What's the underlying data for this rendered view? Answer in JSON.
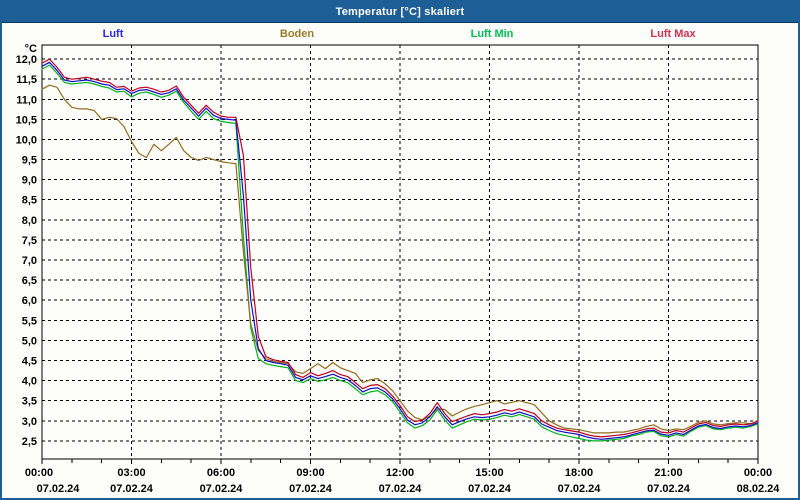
{
  "window": {
    "title": "Temperatur [°C] skaliert",
    "titlebar_color": "#1e5e97",
    "border_color": "#1e5e97"
  },
  "legend": [
    {
      "label": "Luft",
      "color": "#2a2ae6"
    },
    {
      "label": "Boden",
      "color": "#9a7a28"
    },
    {
      "label": "Luft Min",
      "color": "#00c055"
    },
    {
      "label": "Luft Max",
      "color": "#d23254"
    }
  ],
  "chart_data": {
    "type": "line",
    "title": "Temperatur [°C] skaliert",
    "y_unit": "°C",
    "ylabel": "Temperatur",
    "ylim": [
      2.05,
      12.35
    ],
    "grid": "dashed",
    "legend_position": "top",
    "y_ticks": [
      12.0,
      11.5,
      11.0,
      10.5,
      10.0,
      9.5,
      9.0,
      8.5,
      8.0,
      7.5,
      7.0,
      6.5,
      6.0,
      5.5,
      5.0,
      4.5,
      4.0,
      3.5,
      3.0,
      2.5
    ],
    "y_tick_labels": [
      "12,0",
      "11,5",
      "11,0",
      "10,5",
      "10,0",
      "9,5",
      "9,0",
      "8,5",
      "8,0",
      "7,5",
      "7,0",
      "6,5",
      "6,0",
      "5,5",
      "5,0",
      "4,5",
      "4,0",
      "3,5",
      "3,0",
      "2,5"
    ],
    "x_hours_span": 24,
    "minor_tick_hours": 1,
    "sample_interval_minutes": 15,
    "x_ticks": [
      {
        "time": "00:00",
        "date": "07.02.24"
      },
      {
        "time": "03:00",
        "date": "07.02.24"
      },
      {
        "time": "06:00",
        "date": "07.02.24"
      },
      {
        "time": "09:00",
        "date": "07.02.24"
      },
      {
        "time": "12:00",
        "date": "07.02.24"
      },
      {
        "time": "15:00",
        "date": "07.02.24"
      },
      {
        "time": "18:00",
        "date": "07.02.24"
      },
      {
        "time": "21:00",
        "date": "07.02.24"
      },
      {
        "time": "00:00",
        "date": "08.02.24"
      }
    ],
    "date_label_color": "#1f2a4a",
    "series": [
      {
        "name": "Luft",
        "color": "#1010cc",
        "values": [
          11.82,
          11.92,
          11.72,
          11.48,
          11.44,
          11.46,
          11.48,
          11.44,
          11.38,
          11.35,
          11.24,
          11.26,
          11.14,
          11.22,
          11.24,
          11.18,
          11.12,
          11.16,
          11.26,
          10.98,
          10.78,
          10.58,
          10.78,
          10.6,
          10.52,
          10.5,
          10.48,
          8.6,
          6.0,
          4.8,
          4.5,
          4.45,
          4.42,
          4.38,
          4.08,
          4.02,
          4.12,
          4.05,
          4.1,
          4.16,
          4.08,
          4.02,
          3.88,
          3.72,
          3.8,
          3.82,
          3.72,
          3.55,
          3.3,
          3.02,
          2.9,
          2.95,
          3.1,
          3.35,
          3.1,
          2.9,
          2.98,
          3.05,
          3.1,
          3.08,
          3.1,
          3.14,
          3.2,
          3.16,
          3.22,
          3.16,
          3.1,
          2.92,
          2.84,
          2.76,
          2.72,
          2.69,
          2.66,
          2.6,
          2.56,
          2.54,
          2.56,
          2.58,
          2.6,
          2.65,
          2.7,
          2.75,
          2.77,
          2.67,
          2.64,
          2.7,
          2.66,
          2.77,
          2.87,
          2.91,
          2.83,
          2.81,
          2.85,
          2.87,
          2.85,
          2.88,
          2.95
        ]
      },
      {
        "name": "Boden",
        "color": "#926c1c",
        "values": [
          11.25,
          11.35,
          11.3,
          11.0,
          10.8,
          10.76,
          10.76,
          10.72,
          10.5,
          10.55,
          10.52,
          10.32,
          9.95,
          9.65,
          9.55,
          9.88,
          9.72,
          9.88,
          10.05,
          9.72,
          9.55,
          9.48,
          9.55,
          9.5,
          9.45,
          9.42,
          9.4,
          7.2,
          5.4,
          4.75,
          4.55,
          4.48,
          4.45,
          4.42,
          4.22,
          4.18,
          4.3,
          4.42,
          4.3,
          4.45,
          4.32,
          4.25,
          4.18,
          3.95,
          4.02,
          4.05,
          3.92,
          3.75,
          3.5,
          3.25,
          3.08,
          3.02,
          3.12,
          3.3,
          3.28,
          3.12,
          3.22,
          3.3,
          3.36,
          3.4,
          3.45,
          3.5,
          3.42,
          3.46,
          3.5,
          3.45,
          3.4,
          3.2,
          3.0,
          2.9,
          2.82,
          2.8,
          2.78,
          2.74,
          2.7,
          2.7,
          2.7,
          2.72,
          2.72,
          2.76,
          2.8,
          2.86,
          2.9,
          2.8,
          2.76,
          2.8,
          2.78,
          2.86,
          2.96,
          3.0,
          2.92,
          2.9,
          2.93,
          2.95,
          2.95,
          2.93,
          2.95
        ]
      },
      {
        "name": "Luft Min",
        "color": "#00b41e",
        "values": [
          11.75,
          11.85,
          11.65,
          11.42,
          11.38,
          11.4,
          11.42,
          11.38,
          11.32,
          11.28,
          11.18,
          11.2,
          11.06,
          11.15,
          11.18,
          11.12,
          11.05,
          11.1,
          11.2,
          10.92,
          10.7,
          10.5,
          10.7,
          10.52,
          10.45,
          10.42,
          10.4,
          7.6,
          5.3,
          4.55,
          4.42,
          4.38,
          4.35,
          4.32,
          4.0,
          3.95,
          4.05,
          3.98,
          4.02,
          4.08,
          4.0,
          3.95,
          3.8,
          3.65,
          3.72,
          3.75,
          3.65,
          3.48,
          3.22,
          2.95,
          2.82,
          2.88,
          3.02,
          3.28,
          3.02,
          2.82,
          2.9,
          2.98,
          3.04,
          3.02,
          3.04,
          3.08,
          3.14,
          3.1,
          3.16,
          3.1,
          3.04,
          2.85,
          2.76,
          2.68,
          2.64,
          2.6,
          2.56,
          2.52,
          2.5,
          2.5,
          2.52,
          2.54,
          2.56,
          2.62,
          2.66,
          2.72,
          2.74,
          2.63,
          2.6,
          2.66,
          2.62,
          2.74,
          2.84,
          2.88,
          2.8,
          2.78,
          2.82,
          2.84,
          2.82,
          2.86,
          2.92
        ]
      },
      {
        "name": "Luft Max",
        "color": "#c00022",
        "values": [
          11.9,
          12.0,
          11.8,
          11.55,
          11.5,
          11.52,
          11.55,
          11.5,
          11.45,
          11.42,
          11.3,
          11.32,
          11.2,
          11.28,
          11.3,
          11.25,
          11.18,
          11.22,
          11.33,
          11.05,
          10.85,
          10.65,
          10.85,
          10.68,
          10.58,
          10.55,
          10.55,
          9.6,
          6.8,
          5.1,
          4.6,
          4.52,
          4.48,
          4.45,
          4.15,
          4.08,
          4.2,
          4.12,
          4.18,
          4.25,
          4.15,
          4.1,
          3.95,
          3.8,
          3.88,
          3.9,
          3.8,
          3.62,
          3.38,
          3.1,
          2.98,
          3.02,
          3.18,
          3.45,
          3.18,
          2.98,
          3.05,
          3.12,
          3.18,
          3.15,
          3.18,
          3.22,
          3.28,
          3.24,
          3.3,
          3.24,
          3.18,
          3.0,
          2.9,
          2.82,
          2.78,
          2.75,
          2.72,
          2.66,
          2.62,
          2.6,
          2.62,
          2.64,
          2.66,
          2.7,
          2.75,
          2.8,
          2.82,
          2.72,
          2.7,
          2.76,
          2.72,
          2.82,
          2.92,
          2.96,
          2.88,
          2.86,
          2.9,
          2.92,
          2.9,
          2.92,
          3.0
        ]
      }
    ]
  }
}
